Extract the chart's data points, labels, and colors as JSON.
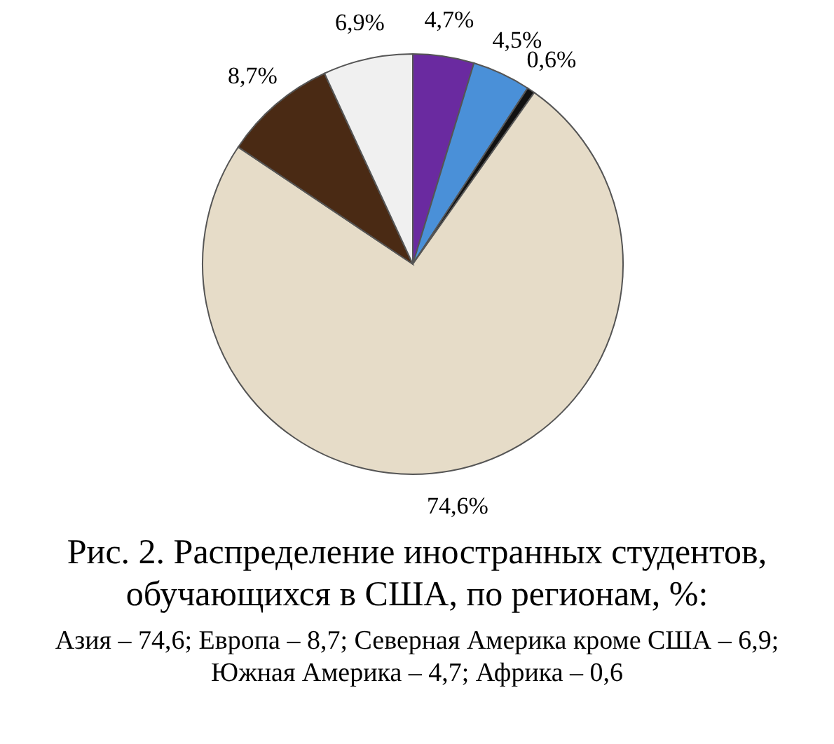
{
  "chart_data": {
    "type": "pie",
    "title": "Рис. 2. Распределение иностранных студентов, обучающихся в США, по регионам, %:",
    "annotations": [
      "Азия – 74,6; Европа – 8,7; Северная Америка кроме США – 6,9; Южная Америка – 4,7; Африка – 0,6"
    ],
    "categories": [
      null,
      null,
      null,
      null,
      null,
      null
    ],
    "values": [
      4.7,
      4.5,
      0.6,
      74.6,
      8.7,
      6.9
    ],
    "colors": [
      "#6a2aa0",
      "#4a90d8",
      "#111111",
      "#e6dcc8",
      "#4a2a14",
      "#f0f0f0"
    ],
    "value_labels": [
      "4,7%",
      "4,5%",
      "0,6%",
      "74,6%",
      "8,7%",
      "6,9%"
    ]
  }
}
